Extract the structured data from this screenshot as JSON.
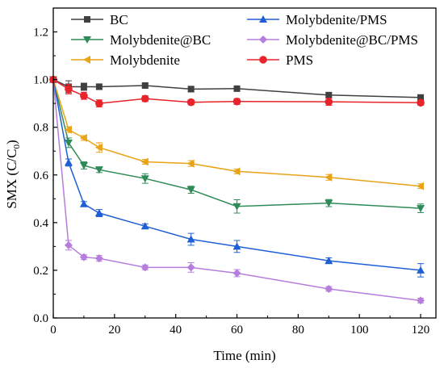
{
  "chart_data": {
    "type": "line",
    "title": "",
    "xlabel": "Time (min)",
    "ylabel": "SMX (C/C",
    "ylabel_sub": "0",
    "ylabel_close": ")",
    "xlim": [
      0,
      125
    ],
    "ylim": [
      0.0,
      1.3
    ],
    "x_ticks": [
      0,
      20,
      40,
      60,
      80,
      100,
      120
    ],
    "y_ticks": [
      0.0,
      0.2,
      0.4,
      0.6,
      0.8,
      1.0,
      1.2
    ],
    "x_tick_labels": [
      "0",
      "20",
      "40",
      "60",
      "80",
      "100",
      "120"
    ],
    "y_tick_labels": [
      "0.0",
      "0.2",
      "0.4",
      "0.6",
      "0.8",
      "1.0",
      "1.2"
    ],
    "grid": false,
    "legend_placement": "top, two columns",
    "series": [
      {
        "name": "BC",
        "color": "#404040",
        "marker": "square",
        "x": [
          0,
          5,
          10,
          15,
          30,
          45,
          60,
          90,
          120
        ],
        "values": [
          1.0,
          0.97,
          0.97,
          0.97,
          0.975,
          0.96,
          0.962,
          0.935,
          0.925
        ],
        "errors": [
          0.01,
          0.025,
          0.015,
          0.012,
          0.01,
          0.012,
          0.01,
          0.01,
          0.01
        ]
      },
      {
        "name": "Molybdenite@BC",
        "color": "#2e8b57",
        "marker": "triangle-down",
        "x": [
          0,
          5,
          10,
          15,
          30,
          45,
          60,
          90,
          120
        ],
        "values": [
          1.0,
          0.735,
          0.64,
          0.622,
          0.585,
          0.538,
          0.468,
          0.482,
          0.46
        ],
        "errors": [
          0.01,
          0.02,
          0.015,
          0.012,
          0.02,
          0.015,
          0.028,
          0.015,
          0.018
        ]
      },
      {
        "name": "Molybdenite",
        "color": "#e8a317",
        "marker": "triangle-left",
        "x": [
          0,
          5,
          10,
          15,
          30,
          45,
          60,
          90,
          120
        ],
        "values": [
          1.0,
          0.79,
          0.755,
          0.715,
          0.655,
          0.648,
          0.615,
          0.59,
          0.553
        ],
        "errors": [
          0.01,
          0.012,
          0.01,
          0.02,
          0.01,
          0.012,
          0.01,
          0.012,
          0.01
        ]
      },
      {
        "name": "Molybdenite/PMS",
        "color": "#1f5fd6",
        "marker": "triangle-up",
        "x": [
          0,
          5,
          10,
          15,
          30,
          45,
          60,
          90,
          120
        ],
        "values": [
          1.0,
          0.652,
          0.478,
          0.44,
          0.385,
          0.33,
          0.3,
          0.24,
          0.2
        ],
        "errors": [
          0.01,
          0.015,
          0.01,
          0.015,
          0.01,
          0.025,
          0.025,
          0.012,
          0.028
        ]
      },
      {
        "name": "Molybdenite@BC/PMS",
        "color": "#b57edc",
        "marker": "diamond",
        "x": [
          0,
          5,
          10,
          15,
          30,
          45,
          60,
          90,
          120
        ],
        "values": [
          1.0,
          0.305,
          0.255,
          0.25,
          0.212,
          0.212,
          0.188,
          0.122,
          0.073
        ],
        "errors": [
          0.01,
          0.02,
          0.01,
          0.012,
          0.01,
          0.02,
          0.015,
          0.01,
          0.01
        ]
      },
      {
        "name": "PMS",
        "color": "#e8232a",
        "marker": "circle",
        "x": [
          0,
          5,
          10,
          15,
          30,
          45,
          60,
          90,
          120
        ],
        "values": [
          1.0,
          0.96,
          0.932,
          0.9,
          0.92,
          0.905,
          0.908,
          0.907,
          0.903
        ],
        "errors": [
          0.01,
          0.02,
          0.015,
          0.015,
          0.012,
          0.01,
          0.012,
          0.015,
          0.01
        ]
      }
    ],
    "legend_order": [
      "BC",
      "Molybdenite/PMS",
      "Molybdenite@BC",
      "Molybdenite@BC/PMS",
      "Molybdenite",
      "PMS"
    ]
  }
}
